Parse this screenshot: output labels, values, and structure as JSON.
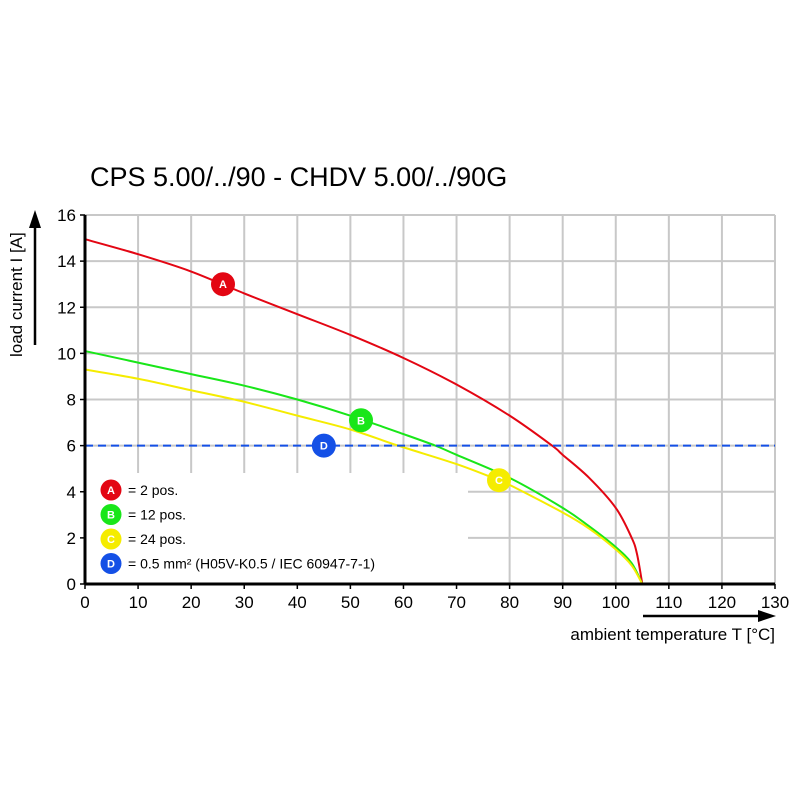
{
  "chart_data": {
    "type": "line",
    "title": "CPS 5.00/../90 - CHDV 5.00/../90G",
    "xlabel": "ambient temperature T [°C]",
    "ylabel": "load current I [A]",
    "xlim": [
      0,
      130
    ],
    "ylim": [
      0,
      16
    ],
    "xticks": [
      "0",
      "10",
      "20",
      "30",
      "40",
      "50",
      "60",
      "70",
      "80",
      "90",
      "100",
      "110",
      "120",
      "130"
    ],
    "yticks": [
      "0",
      "2",
      "4",
      "6",
      "8",
      "10",
      "12",
      "14",
      "16"
    ],
    "grid": true,
    "legend_position": "bottom-left",
    "series": [
      {
        "marker": "A",
        "name": "= 2 pos.",
        "color": "#e30613",
        "marker_at": [
          26,
          13
        ],
        "x": [
          0,
          10,
          20,
          30,
          40,
          50,
          60,
          70,
          80,
          88,
          90,
          95,
          100,
          103,
          104,
          105
        ],
        "y": [
          14.95,
          14.3,
          13.55,
          12.6,
          11.7,
          10.8,
          9.8,
          8.65,
          7.3,
          6.0,
          5.6,
          4.6,
          3.3,
          2.0,
          1.3,
          0
        ]
      },
      {
        "marker": "B",
        "name": "= 12 pos.",
        "color": "#19e619",
        "marker_at": [
          52,
          7.1
        ],
        "x": [
          0,
          10,
          20,
          30,
          40,
          50,
          60,
          66,
          70,
          80,
          90,
          95,
          100,
          103,
          105
        ],
        "y": [
          10.1,
          9.6,
          9.1,
          8.6,
          8.0,
          7.3,
          6.5,
          6.0,
          5.6,
          4.6,
          3.3,
          2.5,
          1.6,
          0.9,
          0
        ]
      },
      {
        "marker": "C",
        "name": "= 24 pos.",
        "color": "#f5ec00",
        "marker_at": [
          78,
          4.5
        ],
        "x": [
          0,
          10,
          20,
          30,
          40,
          50,
          59,
          70,
          78,
          80,
          90,
          95,
          100,
          103,
          105
        ],
        "y": [
          9.3,
          8.9,
          8.4,
          7.9,
          7.3,
          6.7,
          6.0,
          5.2,
          4.5,
          4.3,
          3.1,
          2.4,
          1.5,
          0.8,
          0
        ]
      },
      {
        "marker": "D",
        "name": "= 0.5 mm² (H05V-K0.5 / IEC 60947-7-1)",
        "color": "#1450e6",
        "marker_at": [
          45,
          6
        ],
        "dashed": true,
        "x": [
          0,
          130
        ],
        "y": [
          6,
          6
        ]
      }
    ]
  }
}
